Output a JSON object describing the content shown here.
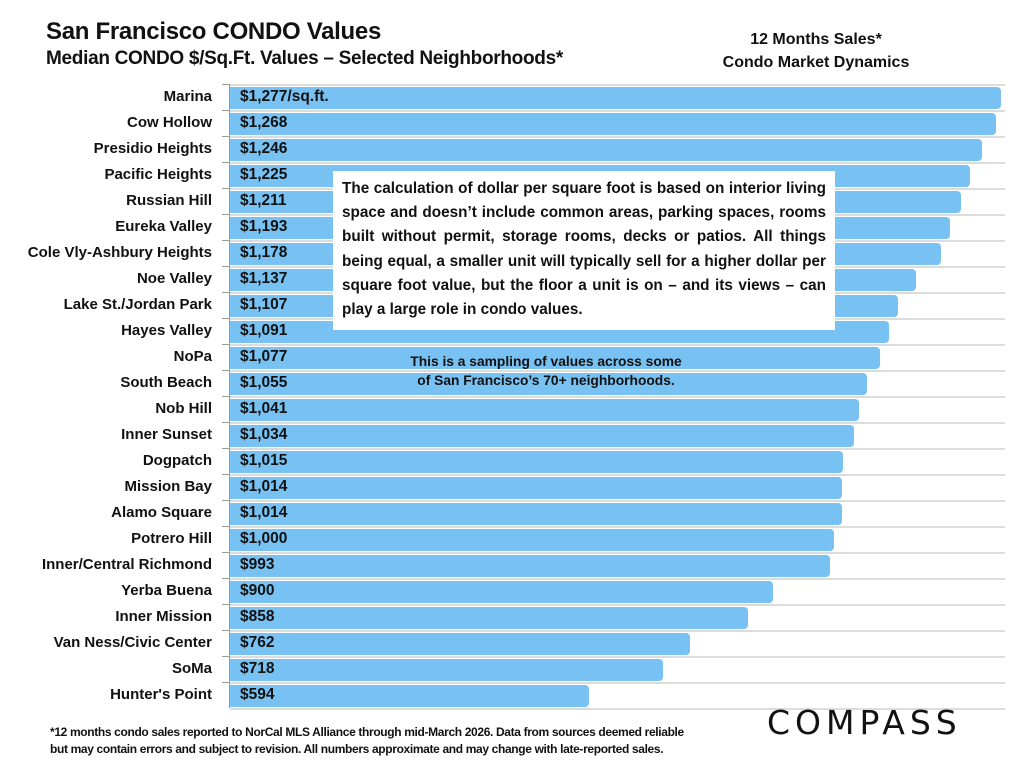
{
  "header": {
    "title": "San Francisco CONDO Values",
    "subtitle": "Median CONDO $/Sq.Ft. Values – Selected Neighborhoods*",
    "side_title_line1": "12 Months Sales*",
    "side_title_line2": "Condo Market Dynamics"
  },
  "annotations": {
    "note": "The calculation of dollar per square foot is based on interior living space and doesn’t include common areas, parking spaces, rooms built without permit, storage rooms, decks or patios. All things being equal, a smaller unit will typically sell for a higher dollar per square foot value, but the floor a unit is on – and its views – can play a large role in condo values.",
    "sampling_line1": "This is a sampling of values across some",
    "sampling_line2": "of San Francisco’s 70+ neighborhoods."
  },
  "footer": {
    "footnote_line1": "*12 months condo sales reported to NorCal MLS Alliance through mid-March 2026. Data from sources deemed reliable",
    "footnote_line2": "but may contain errors and subject to revision. All numbers approximate and may change with late-reported sales.",
    "logo": "COMPASS"
  },
  "colors": {
    "bar": "#78c1f3",
    "grid": "#dcdcdc",
    "text": "#111111"
  },
  "chart_data": {
    "type": "bar",
    "orientation": "horizontal",
    "title": "San Francisco CONDO Values",
    "subtitle": "Median CONDO $/Sq.Ft. Values – Selected Neighborhoods*",
    "xlabel": "",
    "ylabel": "",
    "xlim": [
      0,
      1280
    ],
    "grid": true,
    "legend": "none",
    "unit_suffix_first": "/sq.ft.",
    "categories": [
      "Marina",
      "Cow Hollow",
      "Presidio Heights",
      "Pacific Heights",
      "Russian Hill",
      "Eureka Valley",
      "Cole Vly-Ashbury Heights",
      "Noe Valley",
      "Lake St./Jordan Park",
      "Hayes Valley",
      "NoPa",
      "South Beach",
      "Nob Hill",
      "Inner Sunset",
      "Dogpatch",
      "Mission Bay",
      "Alamo Square",
      "Potrero Hill",
      "Inner/Central Richmond",
      "Yerba Buena",
      "Inner Mission",
      "Van Ness/Civic Center",
      "SoMa",
      "Hunter's Point"
    ],
    "values": [
      1277,
      1268,
      1246,
      1225,
      1211,
      1193,
      1178,
      1137,
      1107,
      1091,
      1077,
      1055,
      1041,
      1034,
      1015,
      1014,
      1014,
      1000,
      993,
      900,
      858,
      762,
      718,
      594
    ],
    "data_labels": [
      "$1,277/sq.ft.",
      "$1,268",
      "$1,246",
      "$1,225",
      "$1,211",
      "$1,193",
      "$1,178",
      "$1,137",
      "$1,107",
      "$1,091",
      "$1,077",
      "$1,055",
      "$1,041",
      "$1,034",
      "$1,015",
      "$1,014",
      "$1,014",
      "$1,000",
      "$993",
      "$900",
      "$858",
      "$762",
      "$718",
      "$594"
    ]
  }
}
